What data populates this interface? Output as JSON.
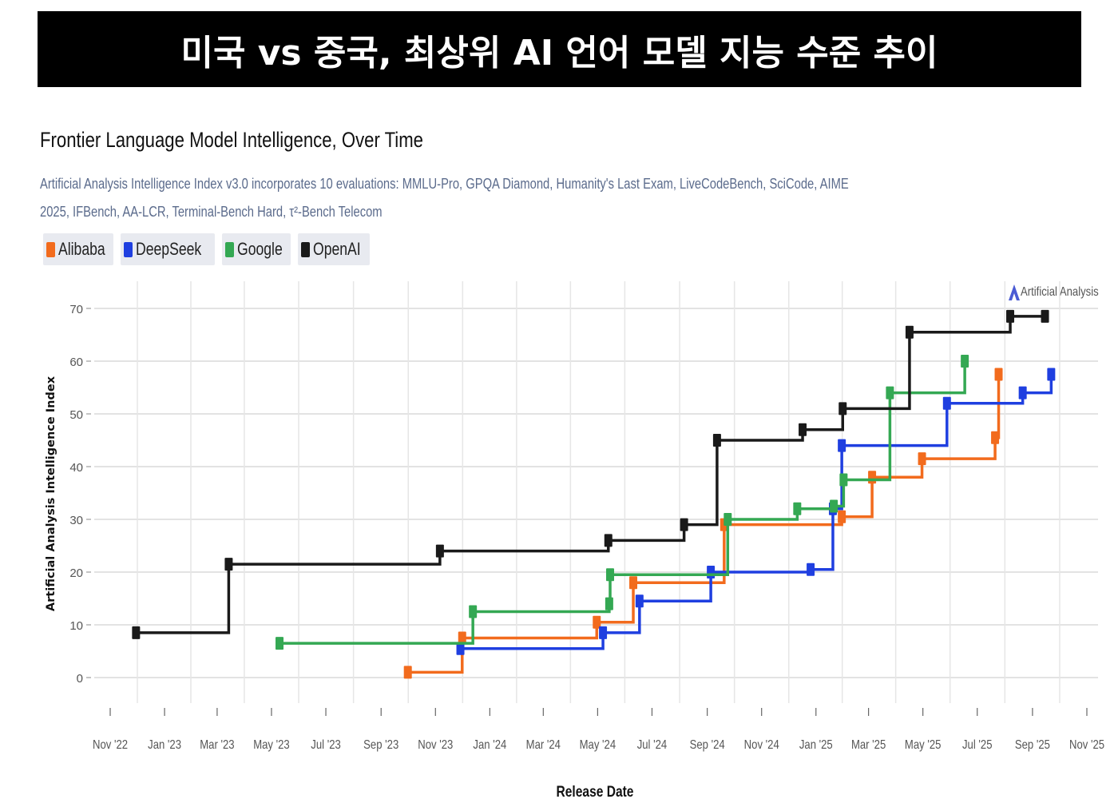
{
  "banner": {
    "title": "미국 vs 중국, 최상위 AI 언어 모델 지능 수준 추이"
  },
  "chart_data": {
    "type": "line",
    "step": true,
    "title": "Frontier Language Model Intelligence, Over Time",
    "subtitle": "Artificial Analysis Intelligence Index v3.0 incorporates 10 evaluations: MMLU-Pro, GPQA Diamond, Humanity's Last Exam, LiveCodeBench, SciCode, AIME 2025, IFBench, AA-LCR, Terminal-Bench Hard, τ²-Bench Telecom",
    "xlabel": "Release Date",
    "ylabel": "Artificial Analysis Intelligence Index",
    "brand": "Artificial Analysis",
    "xlim": [
      "2022-11-01",
      "2025-11-01"
    ],
    "ylim": [
      -5,
      75
    ],
    "yticks": [
      0,
      10,
      20,
      30,
      40,
      50,
      60,
      70
    ],
    "xticks": [
      {
        "date": "2022-11-01",
        "label": "Nov '22"
      },
      {
        "date": "2023-01-01",
        "label": "Jan '23"
      },
      {
        "date": "2023-03-01",
        "label": "Mar '23"
      },
      {
        "date": "2023-05-01",
        "label": "May '23"
      },
      {
        "date": "2023-07-01",
        "label": "Jul '23"
      },
      {
        "date": "2023-09-01",
        "label": "Sep '23"
      },
      {
        "date": "2023-11-01",
        "label": "Nov '23"
      },
      {
        "date": "2024-01-01",
        "label": "Jan '24"
      },
      {
        "date": "2024-03-01",
        "label": "Mar '24"
      },
      {
        "date": "2024-05-01",
        "label": "May '24"
      },
      {
        "date": "2024-07-01",
        "label": "Jul '24"
      },
      {
        "date": "2024-09-01",
        "label": "Sep '24"
      },
      {
        "date": "2024-11-01",
        "label": "Nov '24"
      },
      {
        "date": "2025-01-01",
        "label": "Jan '25"
      },
      {
        "date": "2025-03-01",
        "label": "Mar '25"
      },
      {
        "date": "2025-05-01",
        "label": "May '25"
      },
      {
        "date": "2025-07-01",
        "label": "Jul '25"
      },
      {
        "date": "2025-09-01",
        "label": "Sep '25"
      },
      {
        "date": "2025-11-01",
        "label": "Nov '25"
      }
    ],
    "grid": true,
    "legend_position": "top-left",
    "series": [
      {
        "name": "Alibaba",
        "color": "#f26b1d",
        "points": [
          {
            "x": "2023-10-01",
            "y": 1
          },
          {
            "x": "2023-12-01",
            "y": 7.5
          },
          {
            "x": "2024-04-30",
            "y": 10.5
          },
          {
            "x": "2024-06-10",
            "y": 18
          },
          {
            "x": "2024-09-20",
            "y": 29
          },
          {
            "x": "2025-01-30",
            "y": 30.5
          },
          {
            "x": "2025-03-05",
            "y": 38
          },
          {
            "x": "2025-04-30",
            "y": 41.5
          },
          {
            "x": "2025-07-21",
            "y": 45.5
          },
          {
            "x": "2025-07-25",
            "y": 57.5
          }
        ]
      },
      {
        "name": "DeepSeek",
        "color": "#1f3fe0",
        "points": [
          {
            "x": "2023-11-29",
            "y": 5.5
          },
          {
            "x": "2024-05-07",
            "y": 8.5
          },
          {
            "x": "2024-06-17",
            "y": 14.5
          },
          {
            "x": "2024-09-05",
            "y": 20
          },
          {
            "x": "2024-12-26",
            "y": 20.5
          },
          {
            "x": "2025-01-20",
            "y": 32
          },
          {
            "x": "2025-01-30",
            "y": 44
          },
          {
            "x": "2025-05-28",
            "y": 52
          },
          {
            "x": "2025-08-21",
            "y": 54
          },
          {
            "x": "2025-09-22",
            "y": 57.5
          }
        ]
      },
      {
        "name": "Google",
        "color": "#34a853",
        "points": [
          {
            "x": "2023-05-10",
            "y": 6.5
          },
          {
            "x": "2023-12-13",
            "y": 12.5
          },
          {
            "x": "2024-05-14",
            "y": 14
          },
          {
            "x": "2024-05-15",
            "y": 19.5
          },
          {
            "x": "2024-09-24",
            "y": 30
          },
          {
            "x": "2024-12-11",
            "y": 32
          },
          {
            "x": "2025-01-21",
            "y": 32.5
          },
          {
            "x": "2025-02-01",
            "y": 37.5
          },
          {
            "x": "2025-03-25",
            "y": 54
          },
          {
            "x": "2025-06-17",
            "y": 60
          }
        ]
      },
      {
        "name": "OpenAI",
        "color": "#1a1a1a",
        "points": [
          {
            "x": "2022-11-30",
            "y": 8.5
          },
          {
            "x": "2023-03-14",
            "y": 21.5
          },
          {
            "x": "2023-11-06",
            "y": 24
          },
          {
            "x": "2024-05-13",
            "y": 26
          },
          {
            "x": "2024-08-06",
            "y": 29
          },
          {
            "x": "2024-09-12",
            "y": 45
          },
          {
            "x": "2024-12-17",
            "y": 47
          },
          {
            "x": "2025-01-31",
            "y": 51
          },
          {
            "x": "2025-04-16",
            "y": 65.5
          },
          {
            "x": "2025-08-07",
            "y": 68.5
          },
          {
            "x": "2025-09-15",
            "y": 68.5
          }
        ]
      }
    ]
  }
}
